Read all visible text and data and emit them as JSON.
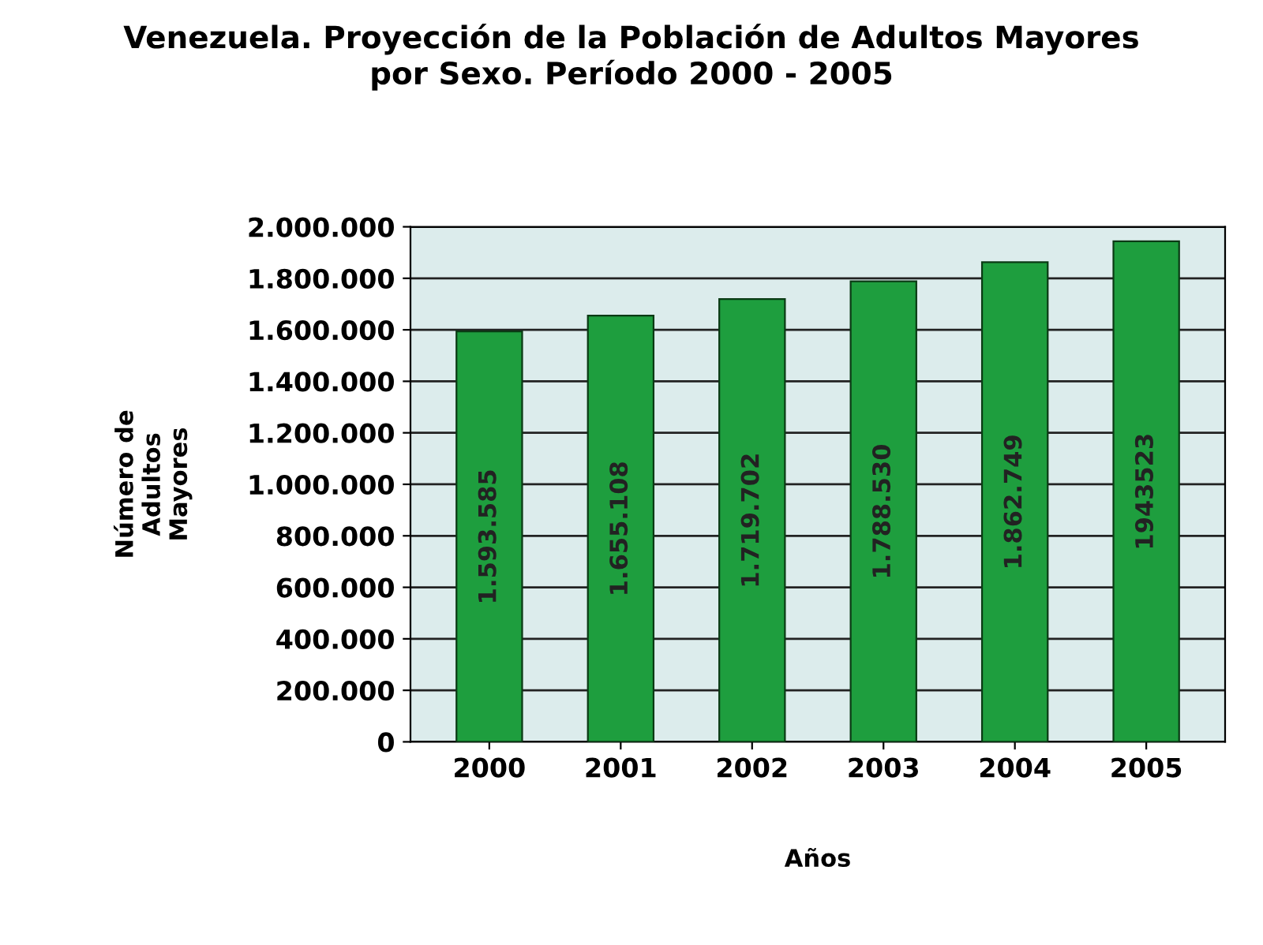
{
  "chart_data": {
    "type": "bar",
    "title": "Venezuela. Proyección de la Población de Adultos Mayores\npor Sexo. Período 2000 - 2005",
    "xlabel": "Años",
    "ylabel": "Número de\nAdultos\nMayores",
    "categories": [
      "2000",
      "2001",
      "2002",
      "2003",
      "2004",
      "2005"
    ],
    "values": [
      1593585,
      1655108,
      1719702,
      1788530,
      1862749,
      1943523
    ],
    "value_labels": [
      "1.593.585",
      "1.655.108",
      "1.719.702",
      "1.788.530",
      "1.862.749",
      "1943523"
    ],
    "color": "#1e9e3e",
    "ylim": [
      0,
      2000000
    ],
    "yticks": [
      {
        "value": 0,
        "label": "0"
      },
      {
        "value": 200000,
        "label": "200.000"
      },
      {
        "value": 400000,
        "label": "400.000"
      },
      {
        "value": 600000,
        "label": "600.000"
      },
      {
        "value": 800000,
        "label": "800.000"
      },
      {
        "value": 1000000,
        "label": "1.000.000"
      },
      {
        "value": 1200000,
        "label": "1.200.000"
      },
      {
        "value": 1400000,
        "label": "1.400.000"
      },
      {
        "value": 1600000,
        "label": "1.600.000"
      },
      {
        "value": 1800000,
        "label": "1.800.000"
      },
      {
        "value": 2000000,
        "label": "2.000.000"
      }
    ],
    "grid": "y"
  }
}
